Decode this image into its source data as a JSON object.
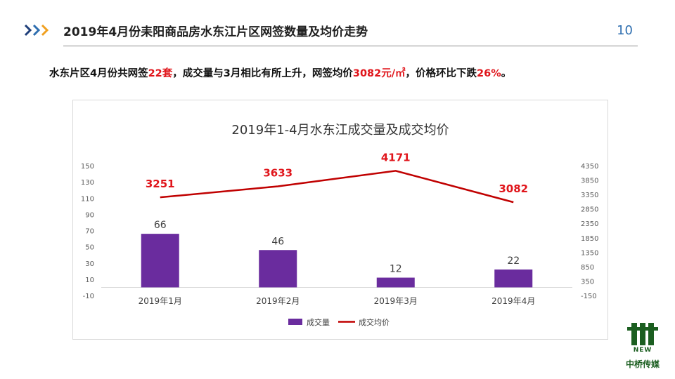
{
  "header": {
    "title": "2019年4月份耒阳商品房水东江片区网签数量及均价走势",
    "page_number": "10"
  },
  "summary": {
    "part1": "水东片区4月份共网签",
    "sets": "22套",
    "part2": "，成交量与3月相比有所上升，网签均价",
    "price": "3082元/㎡",
    "part3": "，价格环比下跌",
    "drop": "26%",
    "part4": "。"
  },
  "logo": {
    "brand": "中桥传媒",
    "tag": "NEW"
  },
  "colors": {
    "bar": "#6a2c9e",
    "line": "#c00000",
    "accent_blue": "#2f6fb0"
  },
  "chart_data": {
    "type": "bar",
    "title": "2019年1-4月水东江成交量及成交均价",
    "categories": [
      "2019年1月",
      "2019年2月",
      "2019年3月",
      "2019年4月"
    ],
    "series": [
      {
        "name": "成交量",
        "type": "bar",
        "axis": "left",
        "values": [
          66,
          46,
          12,
          22
        ]
      },
      {
        "name": "成交均价",
        "type": "line",
        "axis": "right",
        "values": [
          3251,
          3633,
          4171,
          3082
        ]
      }
    ],
    "y_left": {
      "min": -10,
      "max": 150,
      "ticks": [
        -10,
        10,
        30,
        50,
        70,
        90,
        110,
        130,
        150
      ]
    },
    "y_right": {
      "min": -150,
      "max": 4350,
      "ticks": [
        -150,
        350,
        850,
        1350,
        1850,
        2350,
        2850,
        3350,
        3850,
        4350
      ]
    },
    "legend_position": "bottom",
    "grid": false
  }
}
